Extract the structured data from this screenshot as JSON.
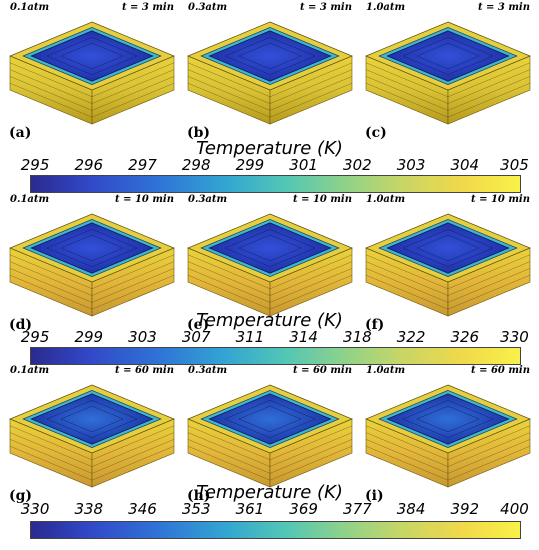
{
  "panels": [
    {
      "pressure": "0.1atm",
      "time": "t = 3 min",
      "label": "(a)",
      "stage": 1
    },
    {
      "pressure": "0.3atm",
      "time": "t = 3 min",
      "label": "(b)",
      "stage": 1
    },
    {
      "pressure": "1.0atm",
      "time": "t = 3 min",
      "label": "(c)",
      "stage": 1
    },
    {
      "pressure": "0.1atm",
      "time": "t = 10 min",
      "label": "(d)",
      "stage": 2
    },
    {
      "pressure": "0.3atm",
      "time": "t = 10 min",
      "label": "(e)",
      "stage": 2
    },
    {
      "pressure": "1.0atm",
      "time": "t = 10 min",
      "label": "(f)",
      "stage": 2
    },
    {
      "pressure": "0.1atm",
      "time": "t = 60 min",
      "label": "(g)",
      "stage": 3
    },
    {
      "pressure": "0.3atm",
      "time": "t = 60 min",
      "label": "(h)",
      "stage": 3
    },
    {
      "pressure": "1.0atm",
      "time": "t = 60 min",
      "label": "(i)",
      "stage": 3
    }
  ],
  "colorbars": [
    {
      "title": "Temperature (K)",
      "ticks": [
        "295",
        "296",
        "297",
        "298",
        "299",
        "301",
        "302",
        "303",
        "304",
        "305"
      ]
    },
    {
      "title": "Temperature (K)",
      "ticks": [
        "295",
        "299",
        "303",
        "307",
        "311",
        "314",
        "318",
        "322",
        "326",
        "330"
      ]
    },
    {
      "title": "Temperature (K)",
      "ticks": [
        "330",
        "338",
        "346",
        "353",
        "361",
        "369",
        "377",
        "384",
        "392",
        "400"
      ]
    }
  ],
  "colors": {
    "side_yellow": "#e9d23c",
    "side_dark": "#b79a1e",
    "top_blue": "#3350d8",
    "top_dark": "#1b2c9e",
    "edge_teal": "#3fb7c9"
  }
}
